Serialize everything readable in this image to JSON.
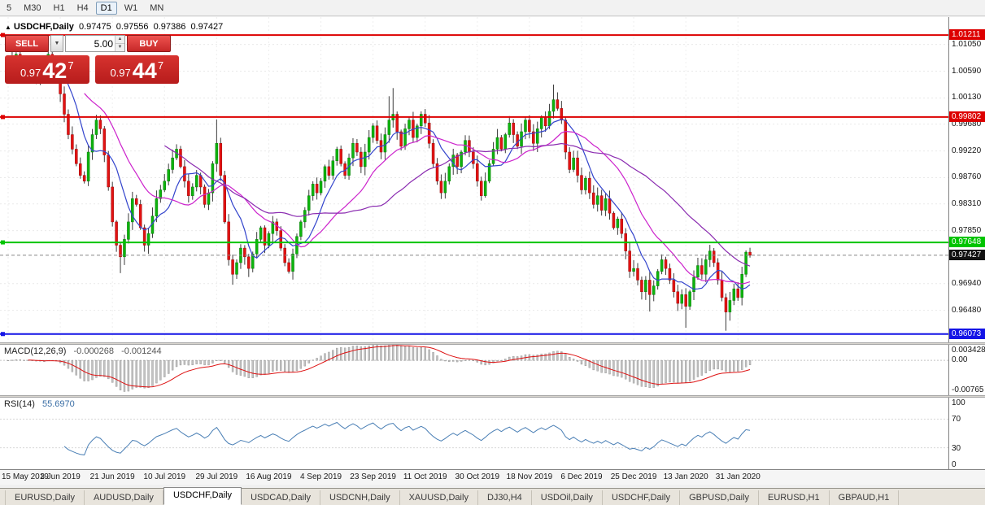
{
  "icons": {
    "up": "▲",
    "down": "▼",
    "dropdown": "▼",
    "chart_arrow": "▲"
  },
  "toolbar": {
    "timeframes": [
      {
        "label": "5",
        "active": false
      },
      {
        "label": "M30",
        "active": false
      },
      {
        "label": "H1",
        "active": false
      },
      {
        "label": "H4",
        "active": false
      },
      {
        "label": "D1",
        "active": true
      },
      {
        "label": "W1",
        "active": false
      },
      {
        "label": "MN",
        "active": false
      }
    ]
  },
  "chart_header": {
    "symbol": "USDCHF,Daily",
    "open": "0.97475",
    "high": "0.97556",
    "low": "0.97386",
    "close": "0.97427"
  },
  "trade_panel": {
    "sell_label": "SELL",
    "buy_label": "BUY",
    "volume": "5.00",
    "sell_price": {
      "prefix": "0.97",
      "big": "42",
      "sup": "7"
    },
    "buy_price": {
      "prefix": "0.97",
      "big": "44",
      "sup": "7"
    }
  },
  "price_axis": {
    "ticks": [
      "1.01050",
      "1.00590",
      "1.00130",
      "0.99680",
      "0.99220",
      "0.98760",
      "0.98310",
      "0.97850",
      "0.96940",
      "0.96480"
    ],
    "tick_values": [
      1.0105,
      1.0059,
      1.0013,
      0.9968,
      0.9922,
      0.9876,
      0.9831,
      0.9785,
      0.9694,
      0.9648
    ]
  },
  "macd_panel": {
    "name": "MACD(12,26,9)",
    "value": "-0.000268",
    "signal_value": "-0.001244",
    "axis_labels": [
      "0.003428",
      "0.00",
      "-0.00765"
    ]
  },
  "rsi_panel": {
    "name": "RSI(14)",
    "value": "55.6970",
    "axis_labels": [
      "100",
      "70",
      "30",
      "0"
    ],
    "axis_values": [
      100,
      70,
      30,
      0
    ]
  },
  "x_axis": {
    "labels": [
      "15 May 2019",
      "3 Jun 2019",
      "21 Jun 2019",
      "10 Jul 2019",
      "29 Jul 2019",
      "16 Aug 2019",
      "4 Sep 2019",
      "23 Sep 2019",
      "11 Oct 2019",
      "30 Oct 2019",
      "18 Nov 2019",
      "6 Dec 2019",
      "25 Dec 2019",
      "13 Jan 2020",
      "31 Jan 2020"
    ]
  },
  "tabs": [
    {
      "label": "EURUSD,Daily",
      "active": false
    },
    {
      "label": "AUDUSD,Daily",
      "active": false
    },
    {
      "label": "USDCHF,Daily",
      "active": true
    },
    {
      "label": "USDCAD,Daily",
      "active": false
    },
    {
      "label": "USDCNH,Daily",
      "active": false
    },
    {
      "label": "XAUUSD,Daily",
      "active": false
    },
    {
      "label": "DJ30,H4",
      "active": false
    },
    {
      "label": "USDOil,Daily",
      "active": false
    },
    {
      "label": "USDCHF,Daily",
      "active": false
    },
    {
      "label": "GBPUSD,Daily",
      "active": false
    },
    {
      "label": "EURUSD,H1",
      "active": false
    },
    {
      "label": "GBPAUD,H1",
      "active": false
    }
  ],
  "chart_data": {
    "type": "candlestick",
    "symbol": "USDCHF",
    "timeframe": "Daily",
    "last_ohlc": {
      "open": 0.97475,
      "high": 0.97556,
      "low": 0.97386,
      "close": 0.97427
    },
    "price_range": [
      0.9593,
      1.0152
    ],
    "bars_per_label": 13,
    "first_open": 1.006,
    "closes": [
      1.007,
      1.0078,
      1.0088,
      1.0072,
      1.006,
      1.0072,
      1.0066,
      1.005,
      1.0062,
      1.0055,
      1.0088,
      1.0075,
      1.0052,
      1.002,
      0.9985,
      0.995,
      0.9925,
      0.99,
      0.988,
      0.987,
      0.992,
      0.995,
      0.9975,
      0.996,
      0.9915,
      0.986,
      0.98,
      0.976,
      0.974,
      0.977,
      0.98,
      0.984,
      0.983,
      0.979,
      0.976,
      0.978,
      0.981,
      0.984,
      0.9855,
      0.987,
      0.989,
      0.991,
      0.9925,
      0.9895,
      0.987,
      0.9845,
      0.986,
      0.988,
      0.986,
      0.983,
      0.985,
      0.99,
      0.9935,
      0.988,
      0.98,
      0.9735,
      0.971,
      0.973,
      0.9755,
      0.974,
      0.972,
      0.9745,
      0.977,
      0.979,
      0.976,
      0.978,
      0.98,
      0.9785,
      0.9755,
      0.973,
      0.9715,
      0.9745,
      0.9775,
      0.98,
      0.982,
      0.9845,
      0.9865,
      0.985,
      0.987,
      0.9895,
      0.988,
      0.9905,
      0.9925,
      0.99,
      0.988,
      0.991,
      0.9935,
      0.992,
      0.9895,
      0.992,
      0.9945,
      0.9965,
      0.994,
      0.992,
      0.995,
      0.9975,
      0.9985,
      0.9955,
      0.993,
      0.996,
      0.9975,
      0.9945,
      0.9965,
      0.9985,
      0.997,
      0.9935,
      0.99,
      0.987,
      0.985,
      0.987,
      0.9895,
      0.9915,
      0.9895,
      0.992,
      0.994,
      0.992,
      0.99,
      0.987,
      0.9845,
      0.987,
      0.99,
      0.9925,
      0.9945,
      0.9925,
      0.995,
      0.997,
      0.995,
      0.993,
      0.9955,
      0.9975,
      0.9955,
      0.9935,
      0.996,
      0.998,
      0.9965,
      0.999,
      1.001,
      0.9995,
      0.9975,
      0.992,
      0.989,
      0.991,
      0.988,
      0.9855,
      0.9875,
      0.985,
      0.983,
      0.9845,
      0.982,
      0.984,
      0.9815,
      0.979,
      0.9805,
      0.978,
      0.975,
      0.9715,
      0.972,
      0.97,
      0.968,
      0.97,
      0.9675,
      0.969,
      0.9715,
      0.9735,
      0.972,
      0.97,
      0.968,
      0.966,
      0.9675,
      0.9655,
      0.968,
      0.9705,
      0.9725,
      0.971,
      0.9735,
      0.975,
      0.973,
      0.97,
      0.967,
      0.9645,
      0.9665,
      0.9685,
      0.967,
      0.971,
      0.9748,
      0.97427
    ],
    "wick_overrides": {
      "10": {
        "high": 1.0098
      },
      "22": {
        "high": 0.9984
      },
      "28": {
        "low": 0.9712
      },
      "52": {
        "high": 0.9976
      },
      "56": {
        "low": 0.9692
      },
      "95": {
        "high": 1.0016
      },
      "96": {
        "high": 1.003
      },
      "136": {
        "high": 1.0036
      },
      "160": {
        "low": 0.9646
      },
      "169": {
        "low": 0.9618
      },
      "179": {
        "low": 0.9613
      },
      "185": {
        "high": 0.97556,
        "low": 0.97386
      }
    },
    "up_color": "#0db40d",
    "up_border": "#087a08",
    "down_color": "#e31212",
    "down_border": "#9b0b0b",
    "wick_color": "#3c3c3c",
    "levels": [
      {
        "price": 1.01211,
        "label": "1.01211",
        "color": "#dd0000"
      },
      {
        "price": 0.99802,
        "label": "0.99802",
        "color": "#dd0000"
      },
      {
        "price": 0.97648,
        "label": "0.97648",
        "color": "#00c400"
      },
      {
        "price": 0.96073,
        "label": "0.96073",
        "color": "#1414e6"
      }
    ],
    "current_price": {
      "value": 0.97427,
      "label": "0.97427",
      "tag_bg": "#111111"
    },
    "moving_averages": [
      {
        "period": 8,
        "color": "#3344cc"
      },
      {
        "period": 20,
        "color": "#cc22cc"
      },
      {
        "period": 40,
        "color": "#8a2bb0"
      }
    ],
    "macd": {
      "fast": 12,
      "slow": 26,
      "signal": 9,
      "range": [
        -0.00765,
        0.003428
      ],
      "hist_color": "#c2c2c2",
      "hist_stroke": "#8f8f8f",
      "signal_color": "#dd1111"
    },
    "rsi": {
      "period": 14,
      "range": [
        0,
        100
      ],
      "levels": [
        30,
        70
      ],
      "color": "#4a7fb5"
    }
  }
}
